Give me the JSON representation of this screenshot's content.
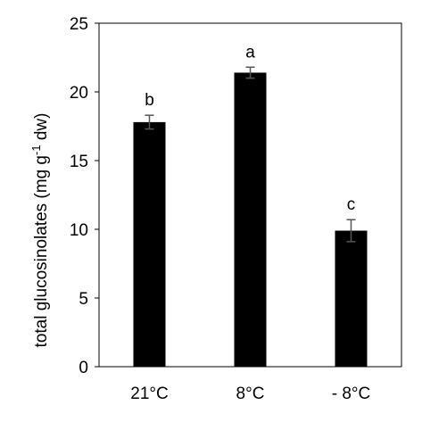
{
  "chart_data": {
    "type": "bar",
    "categories": [
      "21°C",
      "8°C",
      "- 8°C"
    ],
    "values": [
      17.8,
      21.4,
      9.9
    ],
    "errors": [
      0.5,
      0.4,
      0.8
    ],
    "significance_labels": [
      "b",
      "a",
      "c"
    ],
    "title": "",
    "xlabel": "",
    "ylabel": "total glucosinolates (mg g-1 dw)",
    "ylabel_parts": {
      "before": "total glucosinolates (mg g",
      "superscript": "-1",
      "after": " dw)"
    },
    "ylim": [
      0,
      25
    ],
    "yticks": [
      0,
      5,
      10,
      15,
      20,
      25
    ],
    "grid": false,
    "legend": "none",
    "colors": {
      "bar": "#000000",
      "axis": "#000000",
      "error_bar": "#555555"
    }
  }
}
